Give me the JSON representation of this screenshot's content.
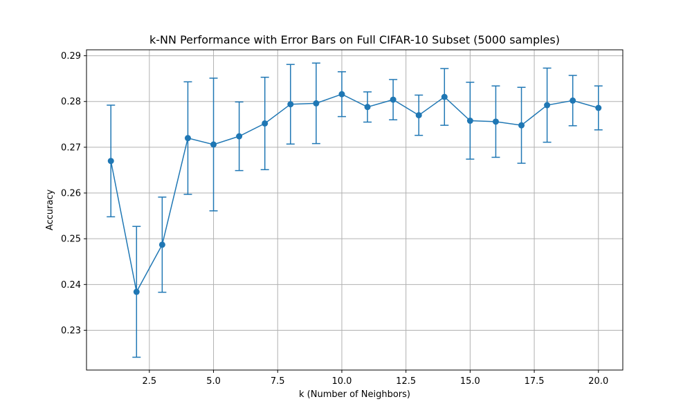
{
  "chart_data": {
    "type": "line",
    "title": "k-NN Performance with Error Bars on Full CIFAR-10 Subset (5000 samples)",
    "xlabel": "k (Number of Neighbors)",
    "ylabel": "Accuracy",
    "xlim": [
      0.05,
      20.95
    ],
    "ylim": [
      0.2213,
      0.2913
    ],
    "xticks": [
      2.5,
      5.0,
      7.5,
      10.0,
      12.5,
      15.0,
      17.5,
      20.0
    ],
    "xtick_labels": [
      "2.5",
      "5.0",
      "7.5",
      "10.0",
      "12.5",
      "15.0",
      "17.5",
      "20.0"
    ],
    "yticks": [
      0.23,
      0.24,
      0.25,
      0.26,
      0.27,
      0.28,
      0.29
    ],
    "ytick_labels": [
      "0.23",
      "0.24",
      "0.25",
      "0.26",
      "0.27",
      "0.28",
      "0.29"
    ],
    "grid": true,
    "color": "#1f77b4",
    "series": [
      {
        "x": [
          1,
          2,
          3,
          4,
          5,
          6,
          7,
          8,
          9,
          10,
          11,
          12,
          13,
          14,
          15,
          16,
          17,
          18,
          19,
          20
        ],
        "y": [
          0.267,
          0.2384,
          0.2487,
          0.272,
          0.2706,
          0.2724,
          0.2752,
          0.2794,
          0.2796,
          0.2816,
          0.2788,
          0.2804,
          0.277,
          0.281,
          0.2758,
          0.2756,
          0.2748,
          0.2792,
          0.2802,
          0.2786
        ],
        "yerr": [
          0.0122,
          0.0143,
          0.0104,
          0.0123,
          0.0145,
          0.0075,
          0.0101,
          0.0087,
          0.0088,
          0.0049,
          0.0033,
          0.0044,
          0.0044,
          0.0062,
          0.0084,
          0.0078,
          0.0083,
          0.0081,
          0.0055,
          0.0048
        ]
      }
    ]
  }
}
